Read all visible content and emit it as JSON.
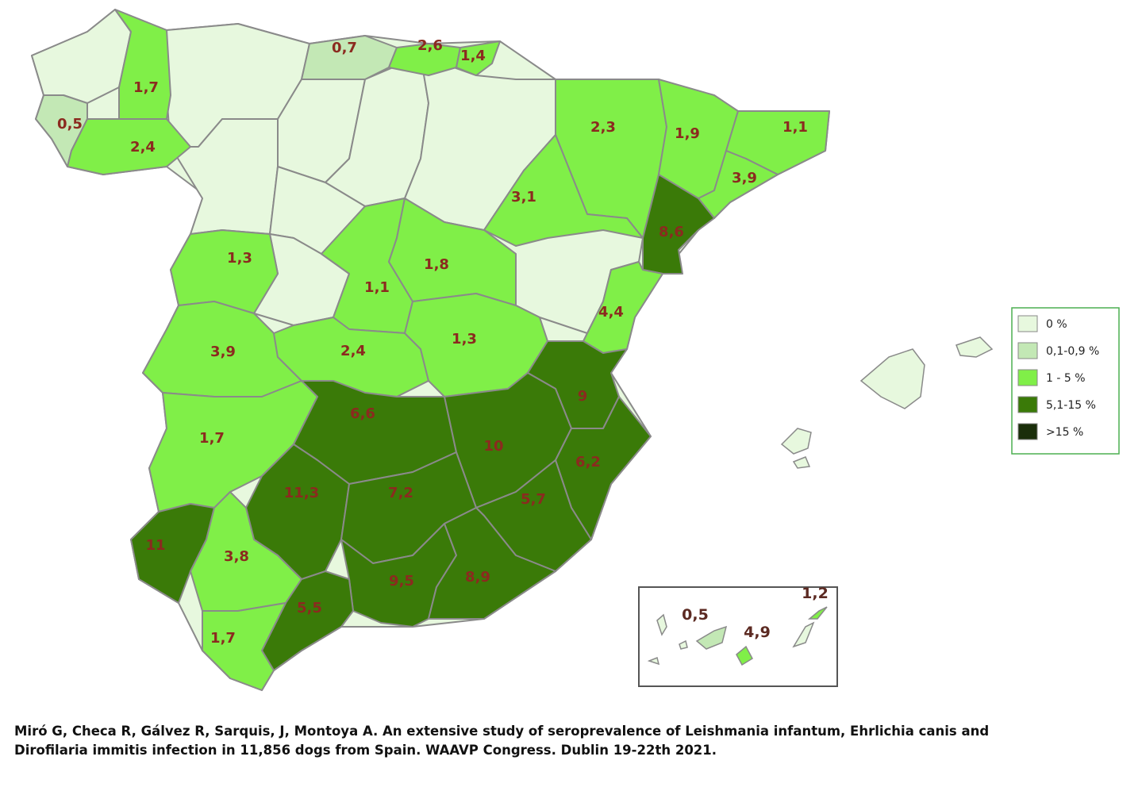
{
  "colors": {
    "c0": "#e7f8de",
    "c1": "#c3e8b5",
    "c2": "#80ef48",
    "c3": "#3a7a08",
    "c4": "#1a2e0a",
    "value_text": "#8b2a1f",
    "canary_text": "#5c2a22"
  },
  "legend": {
    "items": [
      {
        "label": "0 %",
        "color_key": "c0"
      },
      {
        "label": "0,1-0,9 %",
        "color_key": "c1"
      },
      {
        "label": "1 - 5 %",
        "color_key": "c2"
      },
      {
        "label": "5,1-15 %",
        "color_key": "c3"
      },
      {
        "label": ">15 %",
        "color_key": "c4"
      }
    ]
  },
  "regions": [
    {
      "value": "0,5",
      "cls": "c1"
    },
    {
      "value": "1,7",
      "cls": "c2"
    },
    {
      "value": "2,4",
      "cls": "c2"
    },
    {
      "value": "0,7",
      "cls": "c1"
    },
    {
      "value": "2,6",
      "cls": "c2"
    },
    {
      "value": "1,4",
      "cls": "c2"
    },
    {
      "value": "2,3",
      "cls": "c2"
    },
    {
      "value": "1,9",
      "cls": "c2"
    },
    {
      "value": "1,1",
      "cls": "c2"
    },
    {
      "value": "3,9",
      "cls": "c2"
    },
    {
      "value": "3,1",
      "cls": "c2"
    },
    {
      "value": "8,6",
      "cls": "c3"
    },
    {
      "value": "1,3",
      "cls": "c2"
    },
    {
      "value": "1,1",
      "cls": "c2"
    },
    {
      "value": "1,8",
      "cls": "c2"
    },
    {
      "value": "4,4",
      "cls": "c2"
    },
    {
      "value": "3,9",
      "cls": "c2"
    },
    {
      "value": "2,4",
      "cls": "c2"
    },
    {
      "value": "1,3",
      "cls": "c2"
    },
    {
      "value": "9",
      "cls": "c3"
    },
    {
      "value": "6,6",
      "cls": "c3"
    },
    {
      "value": "10",
      "cls": "c3"
    },
    {
      "value": "1,7",
      "cls": "c2"
    },
    {
      "value": "6,2",
      "cls": "c3"
    },
    {
      "value": "11,3",
      "cls": "c3"
    },
    {
      "value": "7,2",
      "cls": "c3"
    },
    {
      "value": "5,7",
      "cls": "c3"
    },
    {
      "value": "11",
      "cls": "c3"
    },
    {
      "value": "3,8",
      "cls": "c2"
    },
    {
      "value": "9,5",
      "cls": "c3"
    },
    {
      "value": "8,9",
      "cls": "c3"
    },
    {
      "value": "5,5",
      "cls": "c3"
    },
    {
      "value": "1,7",
      "cls": "c2"
    }
  ],
  "canary": [
    {
      "value": "0,5"
    },
    {
      "value": "4,9"
    },
    {
      "value": "1,2"
    }
  ],
  "citation": {
    "line1": "Miró G, Checa R, Gálvez R, Sarquis, J, Montoya A. An extensive study of seroprevalence of Leishmania infantum, Ehrlichia canis and",
    "line2": "Dirofilaria immitis infection in 11,856 dogs from Spain. WAAVP Congress. Dublin 19-22th 2021."
  }
}
